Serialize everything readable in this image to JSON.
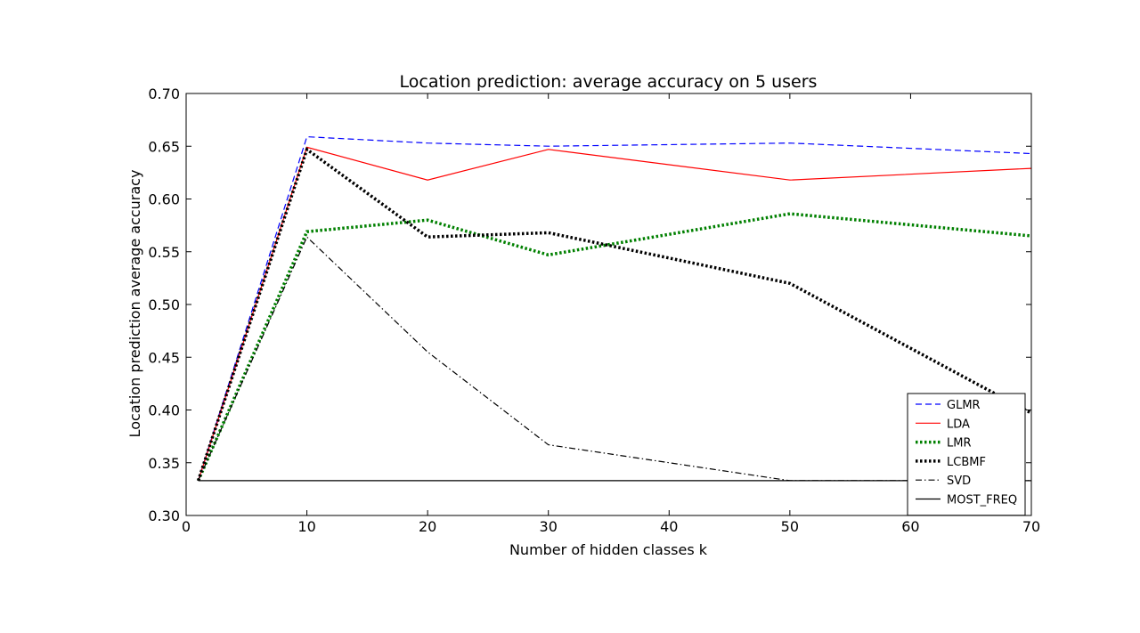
{
  "chart_data": {
    "type": "line",
    "title": "Location prediction: average accuracy on 5 users",
    "xlabel": "Number of hidden classes k",
    "ylabel": "Location prediction average accuracy",
    "xlim": [
      0,
      70
    ],
    "ylim": [
      0.3,
      0.7
    ],
    "xticks": [
      0,
      10,
      20,
      30,
      40,
      50,
      60,
      70
    ],
    "xtick_labels": [
      "0",
      "10",
      "20",
      "30",
      "40",
      "50",
      "60",
      "70"
    ],
    "yticks": [
      0.3,
      0.35,
      0.4,
      0.45,
      0.5,
      0.55,
      0.6,
      0.65,
      0.7
    ],
    "ytick_labels": [
      "0.30",
      "0.35",
      "0.40",
      "0.45",
      "0.50",
      "0.55",
      "0.60",
      "0.65",
      "0.70"
    ],
    "grid": false,
    "legend_position": "bottom-right",
    "x": [
      1,
      10,
      20,
      30,
      50,
      70
    ],
    "series": [
      {
        "name": "GLMR",
        "color": "#0000ff",
        "style": "dashed",
        "values": [
          0.333,
          0.659,
          0.653,
          0.65,
          0.653,
          0.643
        ]
      },
      {
        "name": "LDA",
        "color": "#ff0000",
        "style": "solid",
        "values": [
          0.333,
          0.649,
          0.618,
          0.647,
          0.618,
          0.629
        ]
      },
      {
        "name": "LMR",
        "color": "#008000",
        "style": "dotted",
        "values": [
          0.333,
          0.569,
          0.58,
          0.547,
          0.586,
          0.565
        ]
      },
      {
        "name": "LCBMF",
        "color": "#000000",
        "style": "dotted",
        "values": [
          0.333,
          0.647,
          0.564,
          0.568,
          0.52,
          0.397
        ]
      },
      {
        "name": "SVD",
        "color": "#000000",
        "style": "dashdot",
        "values": [
          0.333,
          0.564,
          0.455,
          0.367,
          0.333,
          0.333
        ]
      },
      {
        "name": "MOST_FREQ",
        "color": "#000000",
        "style": "solid",
        "values": [
          0.333,
          0.333,
          0.333,
          0.333,
          0.333,
          0.333
        ]
      }
    ]
  }
}
